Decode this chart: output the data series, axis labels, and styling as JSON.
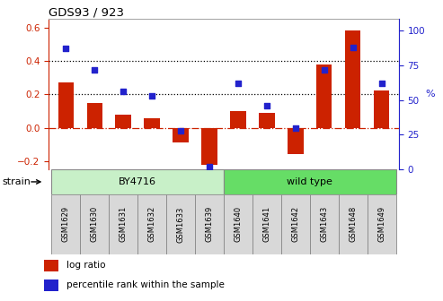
{
  "title": "GDS93 / 923",
  "samples": [
    "GSM1629",
    "GSM1630",
    "GSM1631",
    "GSM1632",
    "GSM1633",
    "GSM1639",
    "GSM1640",
    "GSM1641",
    "GSM1642",
    "GSM1643",
    "GSM1648",
    "GSM1649"
  ],
  "log_ratio": [
    0.27,
    0.15,
    0.08,
    0.055,
    -0.09,
    -0.22,
    0.1,
    0.09,
    -0.16,
    0.38,
    0.58,
    0.22
  ],
  "percentile_rank": [
    87,
    72,
    56,
    53,
    28,
    2,
    62,
    46,
    30,
    72,
    88,
    62
  ],
  "strain_groups": [
    {
      "label": "BY4716",
      "start": 0,
      "end": 6,
      "color": "#c8f0c8"
    },
    {
      "label": "wild type",
      "start": 6,
      "end": 12,
      "color": "#66dd66"
    }
  ],
  "bar_color": "#cc2200",
  "dot_color": "#2222cc",
  "ylim_left": [
    -0.25,
    0.65
  ],
  "ylim_right": [
    0,
    108.33
  ],
  "yticks_left": [
    -0.2,
    0.0,
    0.2,
    0.4,
    0.6
  ],
  "yticks_right": [
    0,
    25,
    50,
    75,
    100
  ],
  "legend_items": [
    {
      "label": "log ratio",
      "color": "#cc2200"
    },
    {
      "label": "percentile rank within the sample",
      "color": "#2222cc"
    }
  ],
  "strain_label": "strain",
  "left_axis_color": "#cc2200",
  "right_axis_color": "#2222cc",
  "sample_box_color": "#d8d8d8",
  "sample_box_edge": "#888888"
}
